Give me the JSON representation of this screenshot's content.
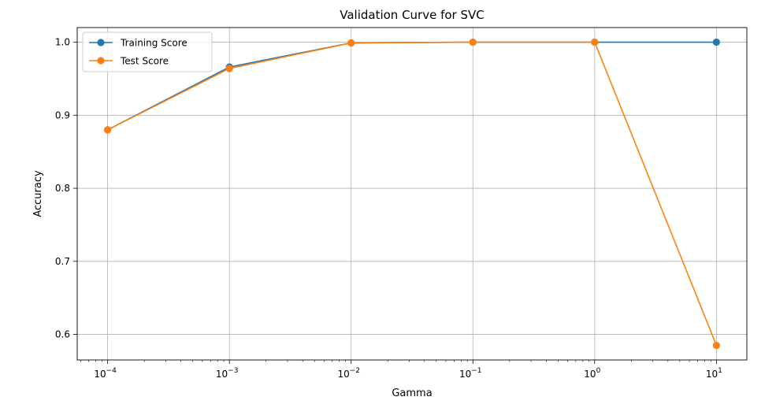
{
  "chart_data": {
    "type": "line",
    "title": "Validation Curve for SVC",
    "xlabel": "Gamma",
    "ylabel": "Accuracy",
    "xscale": "log",
    "x": [
      0.0001,
      0.001,
      0.01,
      0.1,
      1,
      10
    ],
    "xticks": [
      {
        "base": "10",
        "exp": "−4"
      },
      {
        "base": "10",
        "exp": "−3"
      },
      {
        "base": "10",
        "exp": "−2"
      },
      {
        "base": "10",
        "exp": "−1"
      },
      {
        "base": "10",
        "exp": "0"
      },
      {
        "base": "10",
        "exp": "1"
      }
    ],
    "yticks": [
      "0.6",
      "0.7",
      "0.8",
      "0.9",
      "1.0"
    ],
    "ylim": [
      0.565,
      1.02
    ],
    "grid": true,
    "legend_position": "top-left",
    "series": [
      {
        "name": "Training Score",
        "color": "#1f77b4",
        "marker": "circle",
        "values": [
          0.88,
          0.966,
          0.999,
          1.0,
          1.0,
          1.0
        ]
      },
      {
        "name": "Test Score",
        "color": "#ff7f0e",
        "marker": "circle",
        "values": [
          0.88,
          0.964,
          0.999,
          1.0,
          1.0,
          0.585
        ]
      }
    ]
  }
}
